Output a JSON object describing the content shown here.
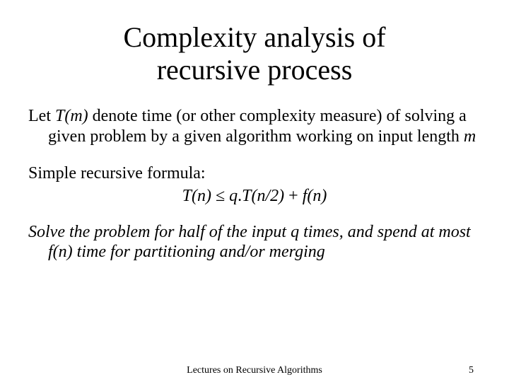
{
  "slide": {
    "title": "Complexity analysis of recursive process",
    "para1_pre": "Let ",
    "para1_Tm": "T(m)",
    "para1_mid": " denote time (or other complexity measure) of solving a given problem by a given algorithm working on input length ",
    "para1_m": "m",
    "para2_label": "Simple recursive formula:",
    "formula_Tn": "T(n)",
    "formula_leq": " ≤ ",
    "formula_q": "q",
    "formula_dot": ".",
    "formula_Tn2": "T(n/2)",
    "formula_plus": " + ",
    "formula_fn": "f(n)",
    "para3_pre": "Solve the problem for half of the input ",
    "para3_q": "q",
    "para3_mid": " times, and spend at most ",
    "para3_fn": "f(n)",
    "para3_post": " time for partitioning and/or merging",
    "footer_center": "Lectures on Recursive Algorithms",
    "footer_page": "5"
  },
  "style": {
    "background_color": "#ffffff",
    "text_color": "#000000",
    "title_fontsize": 40,
    "body_fontsize": 24,
    "footer_fontsize": 14,
    "font_family": "Times New Roman"
  }
}
